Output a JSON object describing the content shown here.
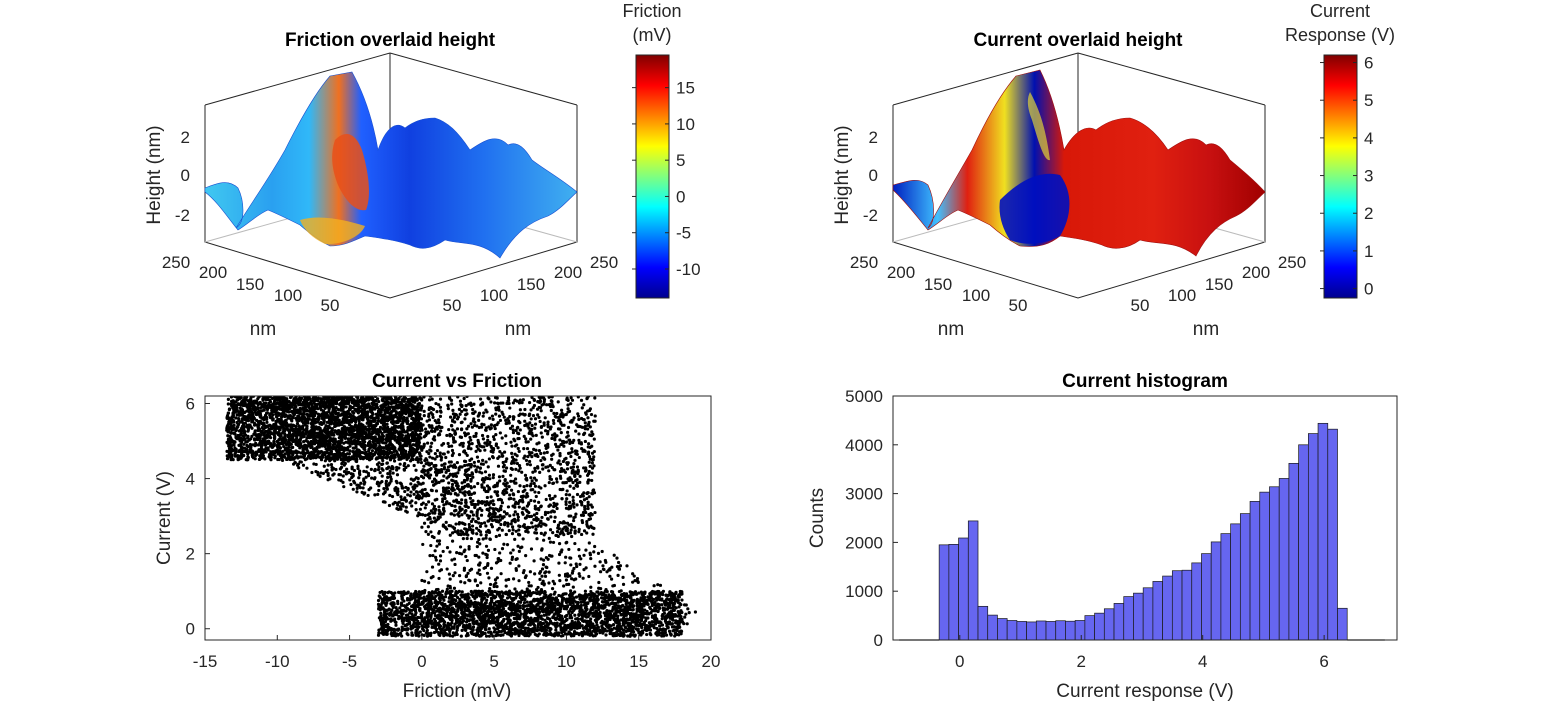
{
  "chart_data": [
    {
      "type": "surface",
      "title": "Friction overlaid height",
      "zlabel": "Height (nm)",
      "xlabel": "nm",
      "ylabel": "nm",
      "zticks": [
        "2",
        "0",
        "-2"
      ],
      "xticks": [
        "50",
        "100",
        "150",
        "200",
        "250"
      ],
      "yticks": [
        "250",
        "200",
        "150",
        "100",
        "50"
      ],
      "zlim": [
        -3,
        3.5
      ],
      "xlim": [
        0,
        256
      ],
      "ylim": [
        0,
        256
      ],
      "colormap": "jet",
      "colorbar": {
        "label": [
          "Friction",
          "(mV)"
        ],
        "ticks": [
          "15",
          "10",
          "5",
          "0",
          "-5",
          "-10"
        ],
        "range": [
          -14,
          19.5
        ]
      }
    },
    {
      "type": "surface",
      "title": "Current overlaid height",
      "zlabel": "Height (nm)",
      "xlabel": "nm",
      "ylabel": "nm",
      "zticks": [
        "2",
        "0",
        "-2"
      ],
      "xticks": [
        "50",
        "100",
        "150",
        "200",
        "250"
      ],
      "yticks": [
        "250",
        "200",
        "150",
        "100",
        "50"
      ],
      "zlim": [
        -3,
        3.5
      ],
      "xlim": [
        0,
        256
      ],
      "ylim": [
        0,
        256
      ],
      "colormap": "jet",
      "colorbar": {
        "label": [
          "Current",
          "Response (V)"
        ],
        "ticks": [
          "6",
          "5",
          "4",
          "3",
          "2",
          "1",
          "0"
        ],
        "range": [
          -0.25,
          6.2
        ]
      }
    },
    {
      "type": "scatter",
      "title": "Current vs Friction",
      "xlabel": "Friction (mV)",
      "ylabel": "Current (V)",
      "xlim": [
        -15,
        20
      ],
      "ylim": [
        -0.3,
        6.2
      ],
      "xticks": [
        "-15",
        "-10",
        "-5",
        "0",
        "5",
        "10",
        "15",
        "20"
      ],
      "yticks": [
        "0",
        "2",
        "4",
        "6"
      ],
      "marker_color": "#000000",
      "clusters": [
        {
          "x_range": [
            -13.5,
            0
          ],
          "y_range": [
            4.5,
            6.2
          ],
          "density": "very high"
        },
        {
          "x_range": [
            -10,
            12
          ],
          "y_range": [
            2.5,
            6.2
          ],
          "density": "high"
        },
        {
          "x_range": [
            -3,
            18
          ],
          "y_range": [
            -0.2,
            1.0
          ],
          "density": "very high"
        },
        {
          "x_range": [
            0,
            19
          ],
          "y_range": [
            0,
            4.5
          ],
          "density": "medium"
        }
      ]
    },
    {
      "type": "bar",
      "title": "Current histogram",
      "xlabel": "Current response (V)",
      "ylabel": "Counts",
      "xlim": [
        -1.1,
        7.2
      ],
      "ylim": [
        0,
        5000
      ],
      "xticks": [
        "0",
        "2",
        "4",
        "6"
      ],
      "yticks": [
        "0",
        "1000",
        "2000",
        "3000",
        "4000",
        "5000"
      ],
      "bar_color": "#6666f0",
      "bin_width": 0.16,
      "bin_start": -0.34,
      "values": [
        1950,
        1960,
        2090,
        2440,
        690,
        510,
        440,
        400,
        380,
        370,
        390,
        380,
        395,
        385,
        400,
        500,
        550,
        640,
        750,
        890,
        960,
        1070,
        1200,
        1310,
        1420,
        1430,
        1580,
        1770,
        2010,
        2180,
        2380,
        2590,
        2840,
        3030,
        3140,
        3310,
        3620,
        4000,
        4230,
        4440,
        4320,
        650
      ],
      "flat_segments": [
        {
          "from": -1.0,
          "to": -0.34,
          "value": 0
        },
        {
          "from": 6.38,
          "to": 7.0,
          "value": 0
        }
      ]
    }
  ]
}
